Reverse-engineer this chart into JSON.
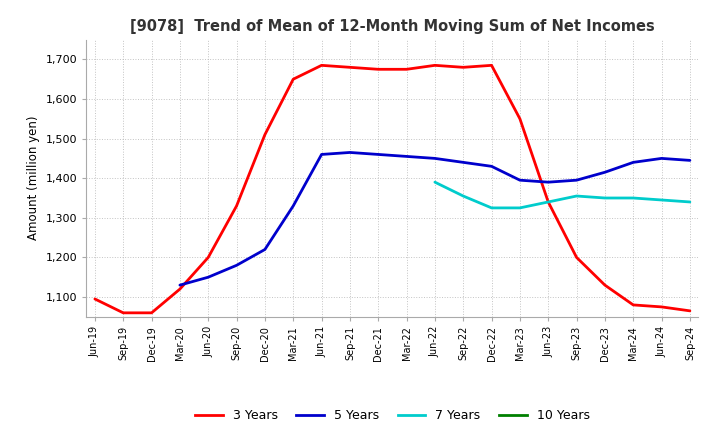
{
  "title": "[9078]  Trend of Mean of 12-Month Moving Sum of Net Incomes",
  "ylabel": "Amount (million yen)",
  "ylim": [
    1050,
    1750
  ],
  "yticks": [
    1100,
    1200,
    1300,
    1400,
    1500,
    1600,
    1700
  ],
  "background_color": "#ffffff",
  "grid_color": "#aaaaaa",
  "x_labels": [
    "Jun-19",
    "Sep-19",
    "Dec-19",
    "Mar-20",
    "Jun-20",
    "Sep-20",
    "Dec-20",
    "Mar-21",
    "Jun-21",
    "Sep-21",
    "Dec-21",
    "Mar-22",
    "Jun-22",
    "Sep-22",
    "Dec-22",
    "Mar-23",
    "Jun-23",
    "Sep-23",
    "Dec-23",
    "Mar-24",
    "Jun-24",
    "Sep-24"
  ],
  "series": {
    "3 Years": {
      "color": "#ff0000",
      "data": [
        1095,
        1060,
        1060,
        1120,
        1200,
        1330,
        1510,
        1650,
        1685,
        1680,
        1675,
        1675,
        1685,
        1680,
        1685,
        1550,
        1340,
        1200,
        1130,
        1080,
        1075,
        1065
      ]
    },
    "5 Years": {
      "color": "#0000cc",
      "data": [
        null,
        null,
        null,
        1130,
        1150,
        1180,
        1220,
        1330,
        1460,
        1465,
        1460,
        1455,
        1450,
        1440,
        1430,
        1395,
        1390,
        1395,
        1415,
        1440,
        1450,
        1445
      ]
    },
    "7 Years": {
      "color": "#00cccc",
      "data": [
        null,
        null,
        null,
        null,
        null,
        null,
        null,
        null,
        null,
        null,
        null,
        null,
        1390,
        1355,
        1325,
        1325,
        1340,
        1355,
        1350,
        1350,
        1345,
        1340
      ]
    },
    "10 Years": {
      "color": "#008000",
      "data": [
        null,
        null,
        null,
        null,
        null,
        null,
        null,
        null,
        null,
        null,
        null,
        null,
        null,
        null,
        null,
        null,
        null,
        null,
        null,
        null,
        null,
        null
      ]
    }
  },
  "legend_order": [
    "3 Years",
    "5 Years",
    "7 Years",
    "10 Years"
  ]
}
